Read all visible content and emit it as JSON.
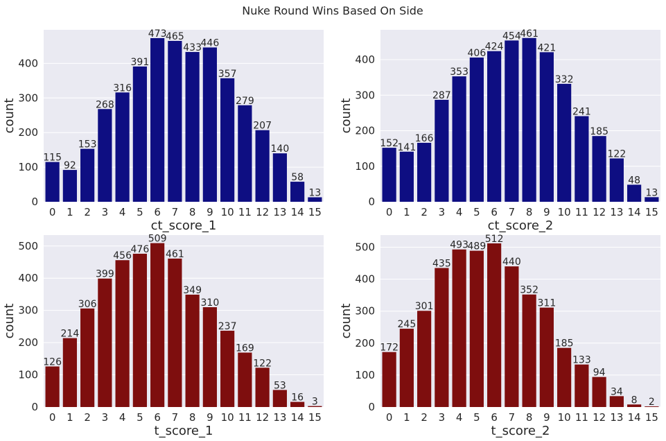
{
  "figure_title": "Nuke Round Wins Based On Side",
  "colors": {
    "ct": "#0e0e82",
    "t": "#7e0e0e",
    "panel_bg": "#eaeaf2",
    "grid": "#ffffff"
  },
  "chart_data": [
    {
      "type": "bar",
      "xlabel": "ct_score_1",
      "ylabel": "count",
      "categories": [
        "0",
        "1",
        "2",
        "3",
        "4",
        "5",
        "6",
        "7",
        "8",
        "9",
        "10",
        "11",
        "12",
        "13",
        "14",
        "15"
      ],
      "values": [
        115,
        92,
        153,
        268,
        316,
        391,
        473,
        465,
        433,
        446,
        357,
        279,
        207,
        140,
        58,
        13
      ],
      "ylim": [
        0,
        497
      ],
      "yticks": [
        "0",
        "100",
        "200",
        "300",
        "400"
      ],
      "grid": true,
      "color": "#0e0e82"
    },
    {
      "type": "bar",
      "xlabel": "ct_score_2",
      "ylabel": "count",
      "categories": [
        "0",
        "1",
        "2",
        "3",
        "4",
        "5",
        "6",
        "7",
        "8",
        "9",
        "10",
        "11",
        "12",
        "13",
        "14",
        "15"
      ],
      "values": [
        152,
        141,
        166,
        287,
        353,
        406,
        424,
        454,
        461,
        421,
        332,
        241,
        185,
        122,
        48,
        13
      ],
      "ylim": [
        0,
        484
      ],
      "yticks": [
        "0",
        "100",
        "200",
        "300",
        "400"
      ],
      "grid": true,
      "color": "#0e0e82"
    },
    {
      "type": "bar",
      "xlabel": "t_score_1",
      "ylabel": "count",
      "categories": [
        "0",
        "1",
        "2",
        "3",
        "4",
        "5",
        "6",
        "7",
        "8",
        "9",
        "10",
        "11",
        "12",
        "13",
        "14",
        "15"
      ],
      "values": [
        126,
        214,
        306,
        399,
        456,
        476,
        509,
        461,
        349,
        310,
        237,
        169,
        122,
        53,
        16,
        3
      ],
      "ylim": [
        0,
        534
      ],
      "yticks": [
        "0",
        "100",
        "200",
        "300",
        "400",
        "500"
      ],
      "grid": true,
      "color": "#7e0e0e"
    },
    {
      "type": "bar",
      "xlabel": "t_score_2",
      "ylabel": "count",
      "categories": [
        "0",
        "1",
        "2",
        "3",
        "4",
        "5",
        "6",
        "7",
        "8",
        "9",
        "10",
        "11",
        "12",
        "13",
        "14",
        "15"
      ],
      "values": [
        172,
        245,
        301,
        435,
        493,
        489,
        512,
        440,
        352,
        311,
        185,
        133,
        94,
        34,
        8,
        2
      ],
      "ylim": [
        0,
        538
      ],
      "yticks": [
        "0",
        "100",
        "200",
        "300",
        "400",
        "500"
      ],
      "grid": true,
      "color": "#7e0e0e"
    }
  ]
}
